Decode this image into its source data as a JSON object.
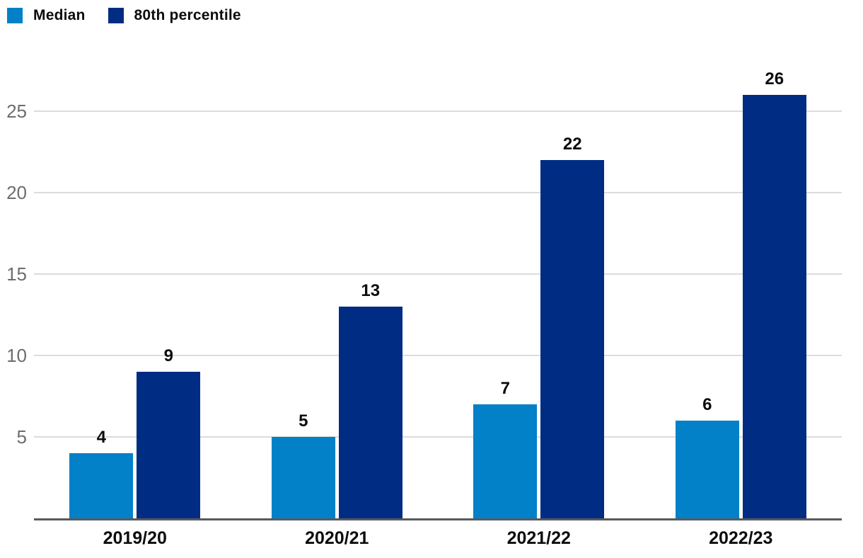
{
  "chart_data": {
    "type": "bar",
    "title": "",
    "categories": [
      "2019/20",
      "2020/21",
      "2021/22",
      "2022/23"
    ],
    "series": [
      {
        "name": "Median",
        "color": "#0280c8",
        "values": [
          4,
          5,
          7,
          6
        ]
      },
      {
        "name": "80th percentile",
        "color": "#012c83",
        "values": [
          9,
          13,
          22,
          26
        ]
      }
    ],
    "yticks": [
      5,
      10,
      15,
      20,
      25
    ],
    "ylim": [
      0,
      28
    ],
    "grid": "horizontal",
    "legend_position": "top-left",
    "value_labels_shown": true,
    "xlabel": "",
    "ylabel": ""
  },
  "colors": {
    "axis_line": "#595a5c",
    "gridline": "#dcdcdc",
    "ytick_label": "#6d6d6d",
    "value_label": "#0b0c0c",
    "background": "#ffffff"
  }
}
